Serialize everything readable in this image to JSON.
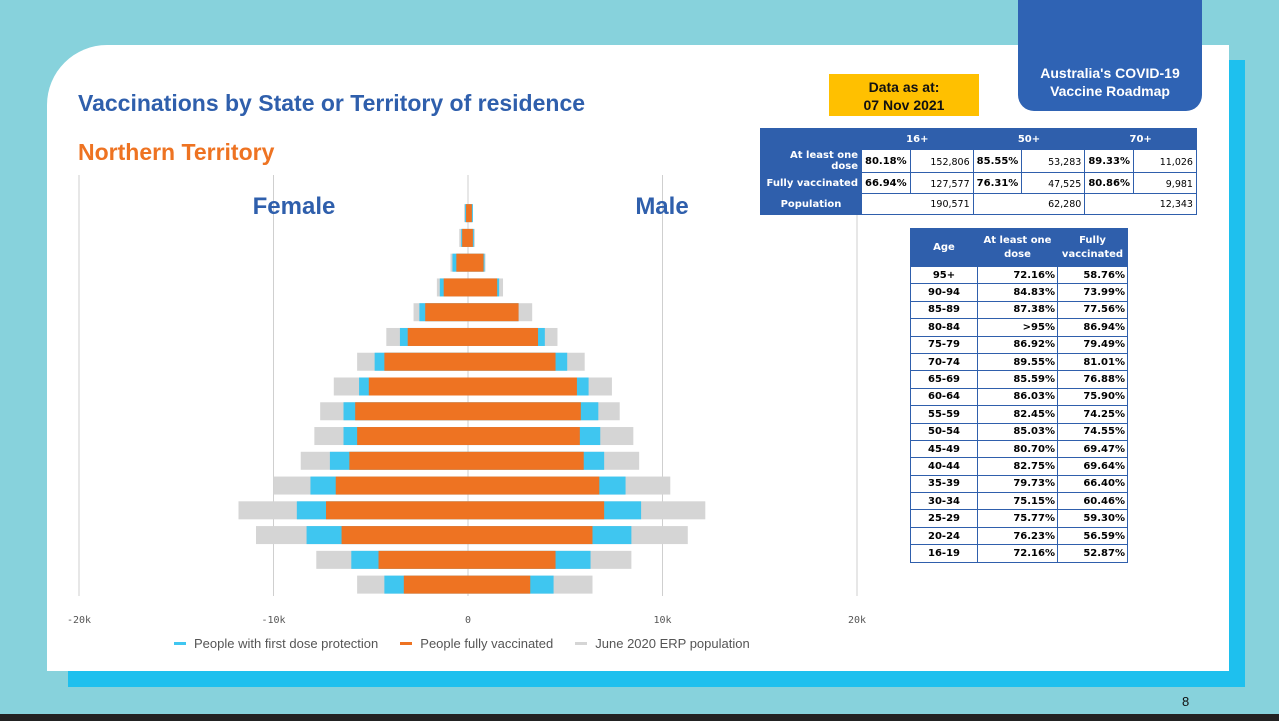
{
  "header": {
    "title": "Vaccinations by State or Territory of residence",
    "subtitle": "Northern Territory",
    "roadmap_line1": "Australia's COVID-19",
    "roadmap_line2": "Vaccine Roadmap",
    "data_as_at_line1": "Data as at:",
    "data_as_at_line2": "07 Nov 2021",
    "page_number": "8"
  },
  "colors": {
    "first_dose": "#3fc6f0",
    "fully_vaccinated": "#ee7322",
    "population": "#d5d5d5",
    "brand_blue": "#2f5fac"
  },
  "chart_data": {
    "type": "bar",
    "orientation": "horizontal-population-pyramid",
    "labels": {
      "left": "Female",
      "right": "Male"
    },
    "x_ticks": [
      "-20k",
      "-10k",
      "0",
      "10k",
      "20k"
    ],
    "xlim": [
      -20000,
      20000
    ],
    "grid": true,
    "legend_position": "bottom",
    "legend": [
      "People with first dose protection",
      "People fully vaccinated",
      "June 2020 ERP population"
    ],
    "series": [
      {
        "name": "People fully vaccinated",
        "female": [
          0,
          100,
          300,
          600,
          1250,
          2200,
          3100,
          4300,
          5100,
          5800,
          5700,
          6100,
          6800,
          7300,
          6500,
          4600,
          3300
        ],
        "male": [
          0,
          200,
          250,
          800,
          1500,
          2600,
          3600,
          4500,
          5600,
          5800,
          5750,
          5950,
          6750,
          7000,
          6400,
          4500,
          3200
        ]
      },
      {
        "name": "People with first dose protection",
        "female": [
          0,
          150,
          350,
          800,
          1450,
          2500,
          3500,
          4800,
          5600,
          6400,
          6400,
          7100,
          8100,
          8800,
          8300,
          6000,
          4300
        ],
        "male": [
          0,
          250,
          300,
          850,
          1600,
          2600,
          3950,
          5100,
          6200,
          6700,
          6800,
          7000,
          8100,
          8900,
          8400,
          6300,
          4400
        ]
      },
      {
        "name": "June 2020 ERP population",
        "female": [
          0,
          200,
          450,
          900,
          1600,
          2800,
          4200,
          5700,
          6900,
          7600,
          7900,
          8600,
          10000,
          11800,
          10900,
          7800,
          5700
        ],
        "male": [
          0,
          250,
          350,
          900,
          1800,
          3300,
          4600,
          6000,
          7400,
          7800,
          8500,
          8800,
          10400,
          12200,
          11300,
          8400,
          6400
        ]
      }
    ],
    "age_groups": [
      "95+",
      "90-94",
      "85-89",
      "80-84",
      "75-79",
      "70-74",
      "65-69",
      "60-64",
      "55-59",
      "50-54",
      "45-49",
      "40-44",
      "35-39",
      "30-34",
      "25-29",
      "20-24",
      "16-19"
    ]
  },
  "summary_table": {
    "columns": [
      "16+",
      "50+",
      "70+"
    ],
    "rows": [
      {
        "label": "At least one dose",
        "cells": [
          [
            "80.18%",
            "152,806"
          ],
          [
            "85.55%",
            "53,283"
          ],
          [
            "89.33%",
            "11,026"
          ]
        ]
      },
      {
        "label": "Fully vaccinated",
        "cells": [
          [
            "66.94%",
            "127,577"
          ],
          [
            "76.31%",
            "47,525"
          ],
          [
            "80.86%",
            "9,981"
          ]
        ]
      }
    ],
    "population_label": "Population",
    "population": [
      "190,571",
      "62,280",
      "12,343"
    ]
  },
  "age_table": {
    "headers": [
      "Age",
      "At least one dose",
      "Fully vaccinated"
    ],
    "rows": [
      [
        "95+",
        "72.16%",
        "58.76%"
      ],
      [
        "90-94",
        "84.83%",
        "73.99%"
      ],
      [
        "85-89",
        "87.38%",
        "77.56%"
      ],
      [
        "80-84",
        ">95%",
        "86.94%"
      ],
      [
        "75-79",
        "86.92%",
        "79.49%"
      ],
      [
        "70-74",
        "89.55%",
        "81.01%"
      ],
      [
        "65-69",
        "85.59%",
        "76.88%"
      ],
      [
        "60-64",
        "86.03%",
        "75.90%"
      ],
      [
        "55-59",
        "82.45%",
        "74.25%"
      ],
      [
        "50-54",
        "85.03%",
        "74.55%"
      ],
      [
        "45-49",
        "80.70%",
        "69.47%"
      ],
      [
        "40-44",
        "82.75%",
        "69.64%"
      ],
      [
        "35-39",
        "79.73%",
        "66.40%"
      ],
      [
        "30-34",
        "75.15%",
        "60.46%"
      ],
      [
        "25-29",
        "75.77%",
        "59.30%"
      ],
      [
        "20-24",
        "76.23%",
        "56.59%"
      ],
      [
        "16-19",
        "72.16%",
        "52.87%"
      ]
    ]
  }
}
